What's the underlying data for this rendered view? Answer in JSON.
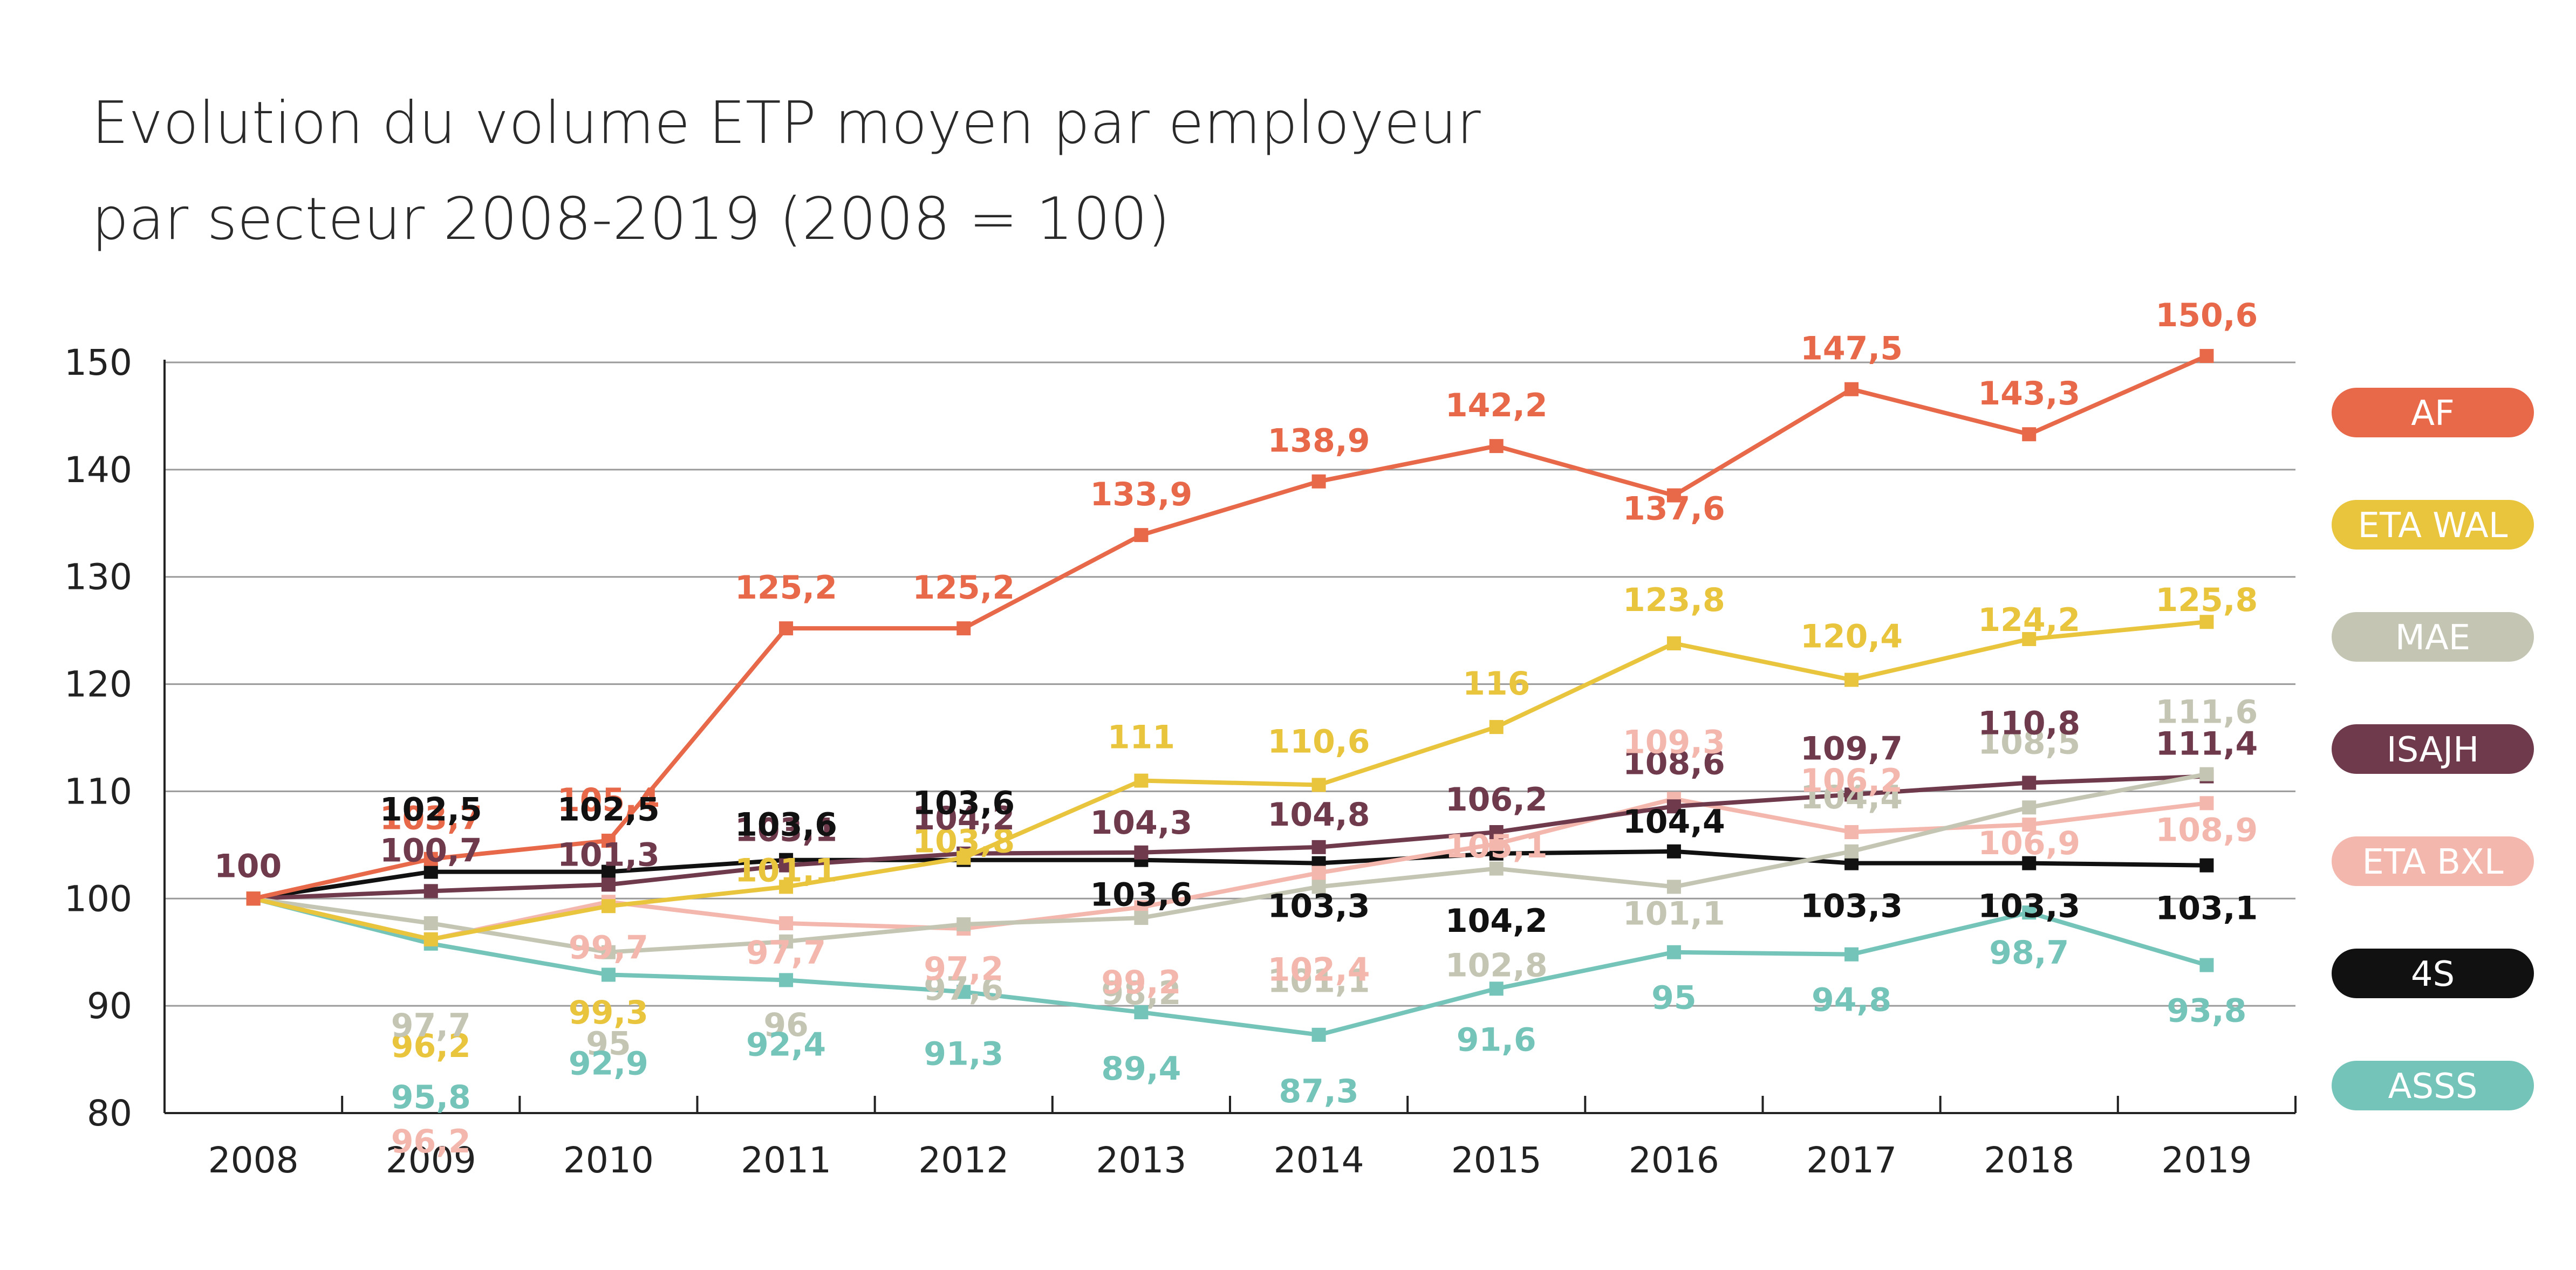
{
  "chart_data": {
    "type": "line",
    "title": "Evolution du volume ETP moyen par employeur",
    "subtitle": "par secteur 2008-2019 (2008 = 100)",
    "xlabel": "",
    "ylabel": "",
    "categories": [
      "2008",
      "2009",
      "2010",
      "2011",
      "2012",
      "2013",
      "2014",
      "2015",
      "2016",
      "2017",
      "2018",
      "2019"
    ],
    "ylim": [
      80,
      150
    ],
    "yticks": [
      80,
      90,
      100,
      110,
      120,
      130,
      140,
      150
    ],
    "grid": true,
    "legend_position": "right",
    "start_label": "100",
    "series": [
      {
        "name": "AF",
        "color": "#e8694a",
        "values": [
          100,
          103.7,
          105.4,
          125.2,
          125.2,
          133.9,
          138.9,
          142.2,
          137.6,
          147.5,
          143.3,
          150.6
        ],
        "labels": [
          null,
          "103,7",
          "105,4",
          "125,2",
          "125,2",
          "133,9",
          "138,9",
          "142,2",
          "137,6",
          "147,5",
          "143,3",
          "150,6"
        ]
      },
      {
        "name": "ETA WAL",
        "color": "#e9c43d",
        "values": [
          100,
          96.2,
          99.3,
          101.1,
          103.8,
          111,
          110.6,
          116,
          123.8,
          120.4,
          124.2,
          125.8
        ],
        "labels": [
          null,
          "96,2",
          "99,3",
          "101,1",
          "103,8",
          "111",
          "110,6",
          "116",
          "123,8",
          "120,4",
          "124,2",
          "125,8"
        ]
      },
      {
        "name": "MAE",
        "color": "#c4c6b3",
        "values": [
          100,
          97.7,
          95,
          96,
          97.6,
          98.2,
          101.1,
          102.8,
          101.1,
          104.4,
          108.5,
          111.6
        ],
        "labels": [
          null,
          "97,7",
          "95",
          "96",
          "97,6",
          "98,2",
          "101,1",
          "102,8",
          "101,1",
          "104,4",
          "108,5",
          "111,6"
        ]
      },
      {
        "name": "ISAJH",
        "color": "#6e3a4c",
        "values": [
          100,
          100.7,
          101.3,
          103.1,
          104.2,
          104.3,
          104.8,
          106.2,
          108.6,
          109.7,
          110.8,
          111.4
        ],
        "labels": [
          null,
          "100,7",
          "101,3",
          "103,1",
          "104,2",
          "104,3",
          "104,8",
          "106,2",
          "108,6",
          "109,7",
          "110,8",
          "111,4"
        ]
      },
      {
        "name": "ETA BXL",
        "color": "#f4b7ad",
        "values": [
          100,
          96.2,
          99.7,
          97.7,
          97.2,
          99.2,
          102.4,
          105.1,
          109.3,
          106.2,
          106.9,
          108.9
        ],
        "labels": [
          null,
          "96,2",
          "99,7",
          "97,7",
          "97,2",
          "99,2",
          "102,4",
          "105,1",
          "109,3",
          "106,2",
          "106,9",
          "108,9"
        ]
      },
      {
        "name": "4S",
        "color": "#111111",
        "values": [
          100,
          102.5,
          102.5,
          103.6,
          103.6,
          103.6,
          103.3,
          104.2,
          104.4,
          103.3,
          103.3,
          103.1
        ],
        "labels": [
          null,
          "102,5",
          "102,5",
          "103,6",
          "103,6",
          "103,6",
          "103,3",
          "104,2",
          "104,4",
          "103,3",
          "103,3",
          "103,1"
        ]
      },
      {
        "name": "ASSS",
        "color": "#74c4b9",
        "values": [
          100,
          95.8,
          92.9,
          92.4,
          91.3,
          89.4,
          87.3,
          91.6,
          95,
          94.8,
          98.7,
          93.8
        ],
        "labels": [
          null,
          "95,8",
          "92,9",
          "92,4",
          "91,3",
          "89,4",
          "87,3",
          "91,6",
          "95",
          "94,8",
          "98,7",
          "93,8"
        ]
      }
    ]
  }
}
